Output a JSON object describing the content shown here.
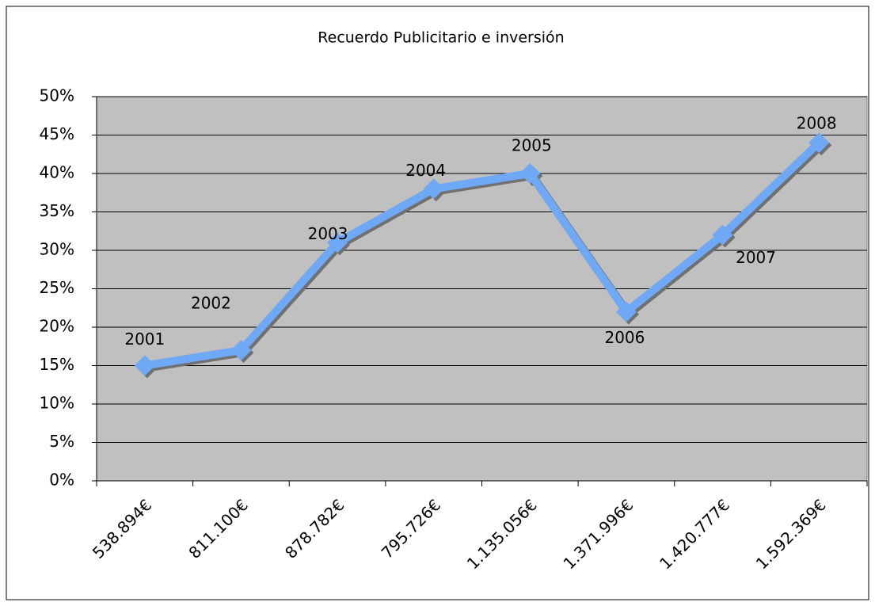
{
  "chart_data": {
    "type": "line",
    "title": "Recuerdo Publicitario e inversión",
    "categories": [
      "538.894€",
      "811.100€",
      "878.782€",
      "795.726€",
      "1.135.056€",
      "1.371.996€",
      "1.420.777€",
      "1.592.369€"
    ],
    "values": [
      15,
      17,
      31,
      38,
      40,
      22,
      32,
      44
    ],
    "point_labels": [
      "2001",
      "2002",
      "2003",
      "2004",
      "2005",
      "2006",
      "2007",
      "2008"
    ],
    "color": "#6fa8f5",
    "ylim": [
      0,
      50
    ],
    "yticks": [
      {
        "value": 0,
        "label": "0%"
      },
      {
        "value": 5,
        "label": "5%"
      },
      {
        "value": 10,
        "label": "10%"
      },
      {
        "value": 15,
        "label": "15%"
      },
      {
        "value": 20,
        "label": "20%"
      },
      {
        "value": 25,
        "label": "25%"
      },
      {
        "value": 30,
        "label": "30%"
      },
      {
        "value": 35,
        "label": "35%"
      },
      {
        "value": 40,
        "label": "40%"
      },
      {
        "value": 45,
        "label": "45%"
      },
      {
        "value": 50,
        "label": "50%"
      }
    ],
    "grid": true
  }
}
